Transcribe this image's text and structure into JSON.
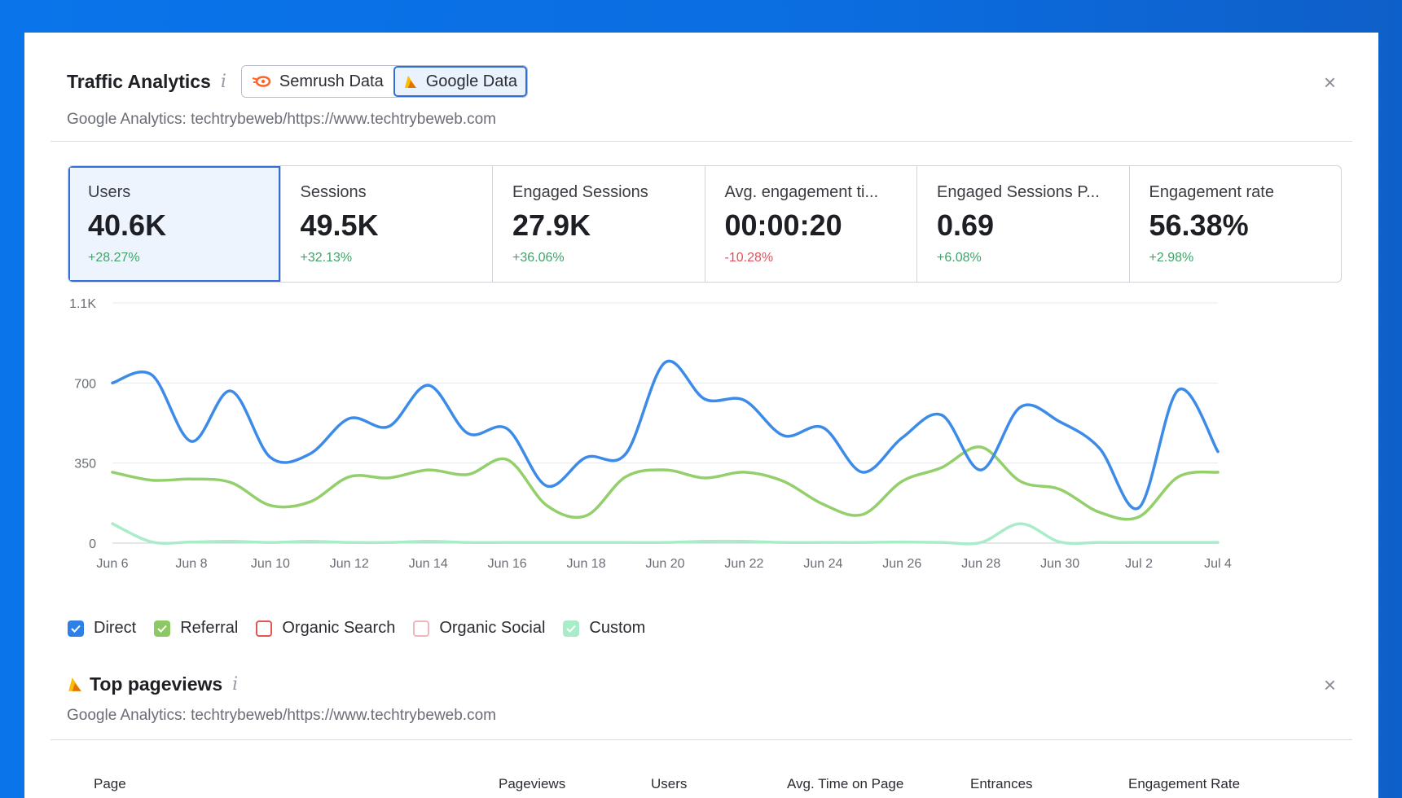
{
  "header": {
    "title": "Traffic Analytics",
    "info": "i",
    "tabs": [
      {
        "label": "Semrush Data",
        "icon": "semrush-fire-icon"
      },
      {
        "label": "Google Data",
        "icon": "google-analytics-icon"
      }
    ],
    "subtitle": "Google Analytics: techtrybeweb/https://www.techtrybeweb.com",
    "close": "×"
  },
  "metrics": [
    {
      "label": "Users",
      "value": "40.6K",
      "change": "+28.27%",
      "trend": "up"
    },
    {
      "label": "Sessions",
      "value": "49.5K",
      "change": "+32.13%",
      "trend": "up"
    },
    {
      "label": "Engaged Sessions",
      "value": "27.9K",
      "change": "+36.06%",
      "trend": "up"
    },
    {
      "label": "Avg. engagement ti...",
      "value": "00:00:20",
      "change": "-10.28%",
      "trend": "down"
    },
    {
      "label": "Engaged Sessions P...",
      "value": "0.69",
      "change": "+6.08%",
      "trend": "up"
    },
    {
      "label": "Engagement rate",
      "value": "56.38%",
      "change": "+2.98%",
      "trend": "up"
    }
  ],
  "chart_data": {
    "type": "line",
    "x": [
      "Jun 6",
      "Jun 7",
      "Jun 8",
      "Jun 9",
      "Jun 10",
      "Jun 11",
      "Jun 12",
      "Jun 13",
      "Jun 14",
      "Jun 15",
      "Jun 16",
      "Jun 17",
      "Jun 18",
      "Jun 19",
      "Jun 20",
      "Jun 21",
      "Jun 22",
      "Jun 23",
      "Jun 24",
      "Jun 25",
      "Jun 26",
      "Jun 27",
      "Jun 28",
      "Jun 29",
      "Jun 30",
      "Jul 1",
      "Jul 2",
      "Jul 3",
      "Jul 4"
    ],
    "xticks": [
      "Jun 6",
      "Jun 8",
      "Jun 10",
      "Jun 12",
      "Jun 14",
      "Jun 16",
      "Jun 18",
      "Jun 20",
      "Jun 22",
      "Jun 24",
      "Jun 26",
      "Jun 28",
      "Jun 30",
      "Jul 2",
      "Jul 4"
    ],
    "yticks": [
      {
        "value": 0,
        "label": "0"
      },
      {
        "value": 350,
        "label": "350"
      },
      {
        "value": 700,
        "label": "700"
      },
      {
        "value": 1050,
        "label": "1.1K"
      }
    ],
    "ylim": [
      0,
      1050
    ],
    "grid": true,
    "series": [
      {
        "name": "Direct",
        "color": "#3d8be8",
        "values": [
          700,
          735,
          445,
          665,
          375,
          390,
          545,
          510,
          690,
          480,
          500,
          250,
          375,
          390,
          790,
          630,
          625,
          470,
          505,
          310,
          460,
          560,
          320,
          595,
          530,
          415,
          155,
          670,
          400
        ]
      },
      {
        "name": "Referral",
        "color": "#93cf6a",
        "values": [
          310,
          275,
          280,
          265,
          165,
          180,
          290,
          285,
          320,
          300,
          365,
          165,
          120,
          290,
          320,
          285,
          310,
          270,
          170,
          125,
          270,
          330,
          420,
          270,
          235,
          135,
          115,
          290,
          310
        ]
      },
      {
        "name": "Custom",
        "color": "#a9ecc9",
        "values": [
          85,
          5,
          5,
          8,
          3,
          8,
          3,
          3,
          8,
          3,
          3,
          3,
          3,
          3,
          3,
          8,
          8,
          3,
          3,
          3,
          5,
          3,
          3,
          85,
          5,
          3,
          3,
          3,
          3
        ]
      }
    ]
  },
  "legend": [
    {
      "label": "Direct",
      "checked": true,
      "color": "#2f80e6"
    },
    {
      "label": "Referral",
      "checked": true,
      "color": "#8cc864"
    },
    {
      "label": "Organic Search",
      "checked": false,
      "color": "#e3564f"
    },
    {
      "label": "Organic Social",
      "checked": false,
      "color": "#f0b6bd"
    },
    {
      "label": "Custom",
      "checked": true,
      "color": "#a9ecc9"
    }
  ],
  "pageviews": {
    "title": "Top pageviews",
    "info": "i",
    "icon": "google-analytics-icon",
    "subtitle": "Google Analytics: techtrybeweb/https://www.techtrybeweb.com",
    "close": "×",
    "columns": [
      "Page",
      "Pageviews",
      "Users",
      "Avg. Time on Page",
      "Entrances",
      "Engagement Rate"
    ]
  }
}
